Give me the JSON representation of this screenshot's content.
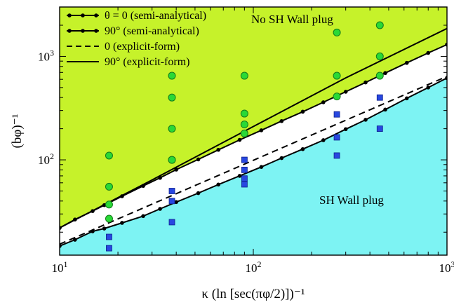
{
  "chart_data": {
    "type": "scatter",
    "xscale": "log",
    "yscale": "log",
    "xlim": [
      10,
      1000
    ],
    "ylim": [
      12,
      3000
    ],
    "xlabel": "κ (ln [sec(πφ/2)])⁻¹",
    "ylabel": "(bφ)⁻¹",
    "xticks": [
      {
        "value": 10,
        "mantissa": "10",
        "exp": "1"
      },
      {
        "value": 100,
        "mantissa": "10",
        "exp": "2"
      },
      {
        "value": 1000,
        "mantissa": "10",
        "exp": "3"
      }
    ],
    "yticks": [
      {
        "value": 100,
        "mantissa": "10",
        "exp": "2"
      },
      {
        "value": 1000,
        "mantissa": "10",
        "exp": "3"
      }
    ],
    "region_labels": {
      "upper": "No SH Wall plug",
      "lower": "SH Wall plug"
    },
    "region_colors": {
      "upper": "#c6f22a",
      "lower": "#7df3f3"
    },
    "legend": [
      {
        "label": "θ = 0 (semi-analytical)",
        "style": "dot-line"
      },
      {
        "label": "90° (semi-analytical)",
        "style": "dot-line"
      },
      {
        "label": "0 (explicit-form)",
        "style": "dashed"
      },
      {
        "label": "90° (explicit-form)",
        "style": "solid"
      }
    ],
    "series": [
      {
        "name": "θ = 0 (semi-analytical)",
        "style": "dot-line",
        "x": [
          10,
          12,
          14.8,
          17,
          21,
          27,
          33,
          40,
          52,
          66,
          85,
          110,
          140,
          180,
          230,
          300,
          380,
          480,
          620,
          800,
          1000
        ],
        "y": [
          14.7,
          16.9,
          20.4,
          21.7,
          24.6,
          28.6,
          33.6,
          39.1,
          47.7,
          57.7,
          70,
          85.4,
          104,
          127,
          155,
          198,
          244,
          306,
          393,
          500,
          618
        ]
      },
      {
        "name": "90° (semi-analytical)",
        "style": "dot-line",
        "x": [
          10,
          12,
          14.8,
          17,
          21,
          27,
          33,
          40,
          52,
          66,
          85,
          110,
          140,
          180,
          230,
          300,
          380,
          480,
          620,
          800,
          1000
        ],
        "y": [
          22,
          26.5,
          32,
          36.5,
          44.5,
          56,
          67,
          80.5,
          101,
          125,
          156,
          193,
          237,
          292,
          360,
          455,
          560,
          690,
          865,
          1080,
          1300
        ]
      },
      {
        "name": "0 (explicit-form)",
        "style": "dashed",
        "x": [
          10,
          1000
        ],
        "y": [
          15.3,
          640
        ]
      },
      {
        "name": "90° (explicit-form)",
        "style": "solid",
        "x": [
          10,
          30,
          100,
          300,
          1000
        ],
        "y": [
          22,
          64,
          210,
          620,
          1860
        ]
      },
      {
        "name": "No SH Wall plug",
        "style": "circle",
        "x": [
          18,
          18,
          18,
          18,
          38,
          38,
          38,
          38,
          38,
          90,
          90,
          90,
          90,
          270,
          270,
          270,
          450,
          450,
          450
        ],
        "y": [
          27,
          37,
          55,
          110,
          100,
          200,
          400,
          650,
          100,
          180,
          220,
          280,
          650,
          410,
          650,
          1700,
          650,
          1000,
          2000
        ]
      },
      {
        "name": "SH Wall plug",
        "style": "square",
        "x": [
          18,
          18,
          38,
          38,
          38,
          90,
          90,
          90,
          90,
          270,
          270,
          270,
          450,
          450
        ],
        "y": [
          14,
          18,
          25,
          40,
          50,
          58,
          66,
          80,
          100,
          110,
          165,
          275,
          200,
          400
        ]
      }
    ]
  }
}
